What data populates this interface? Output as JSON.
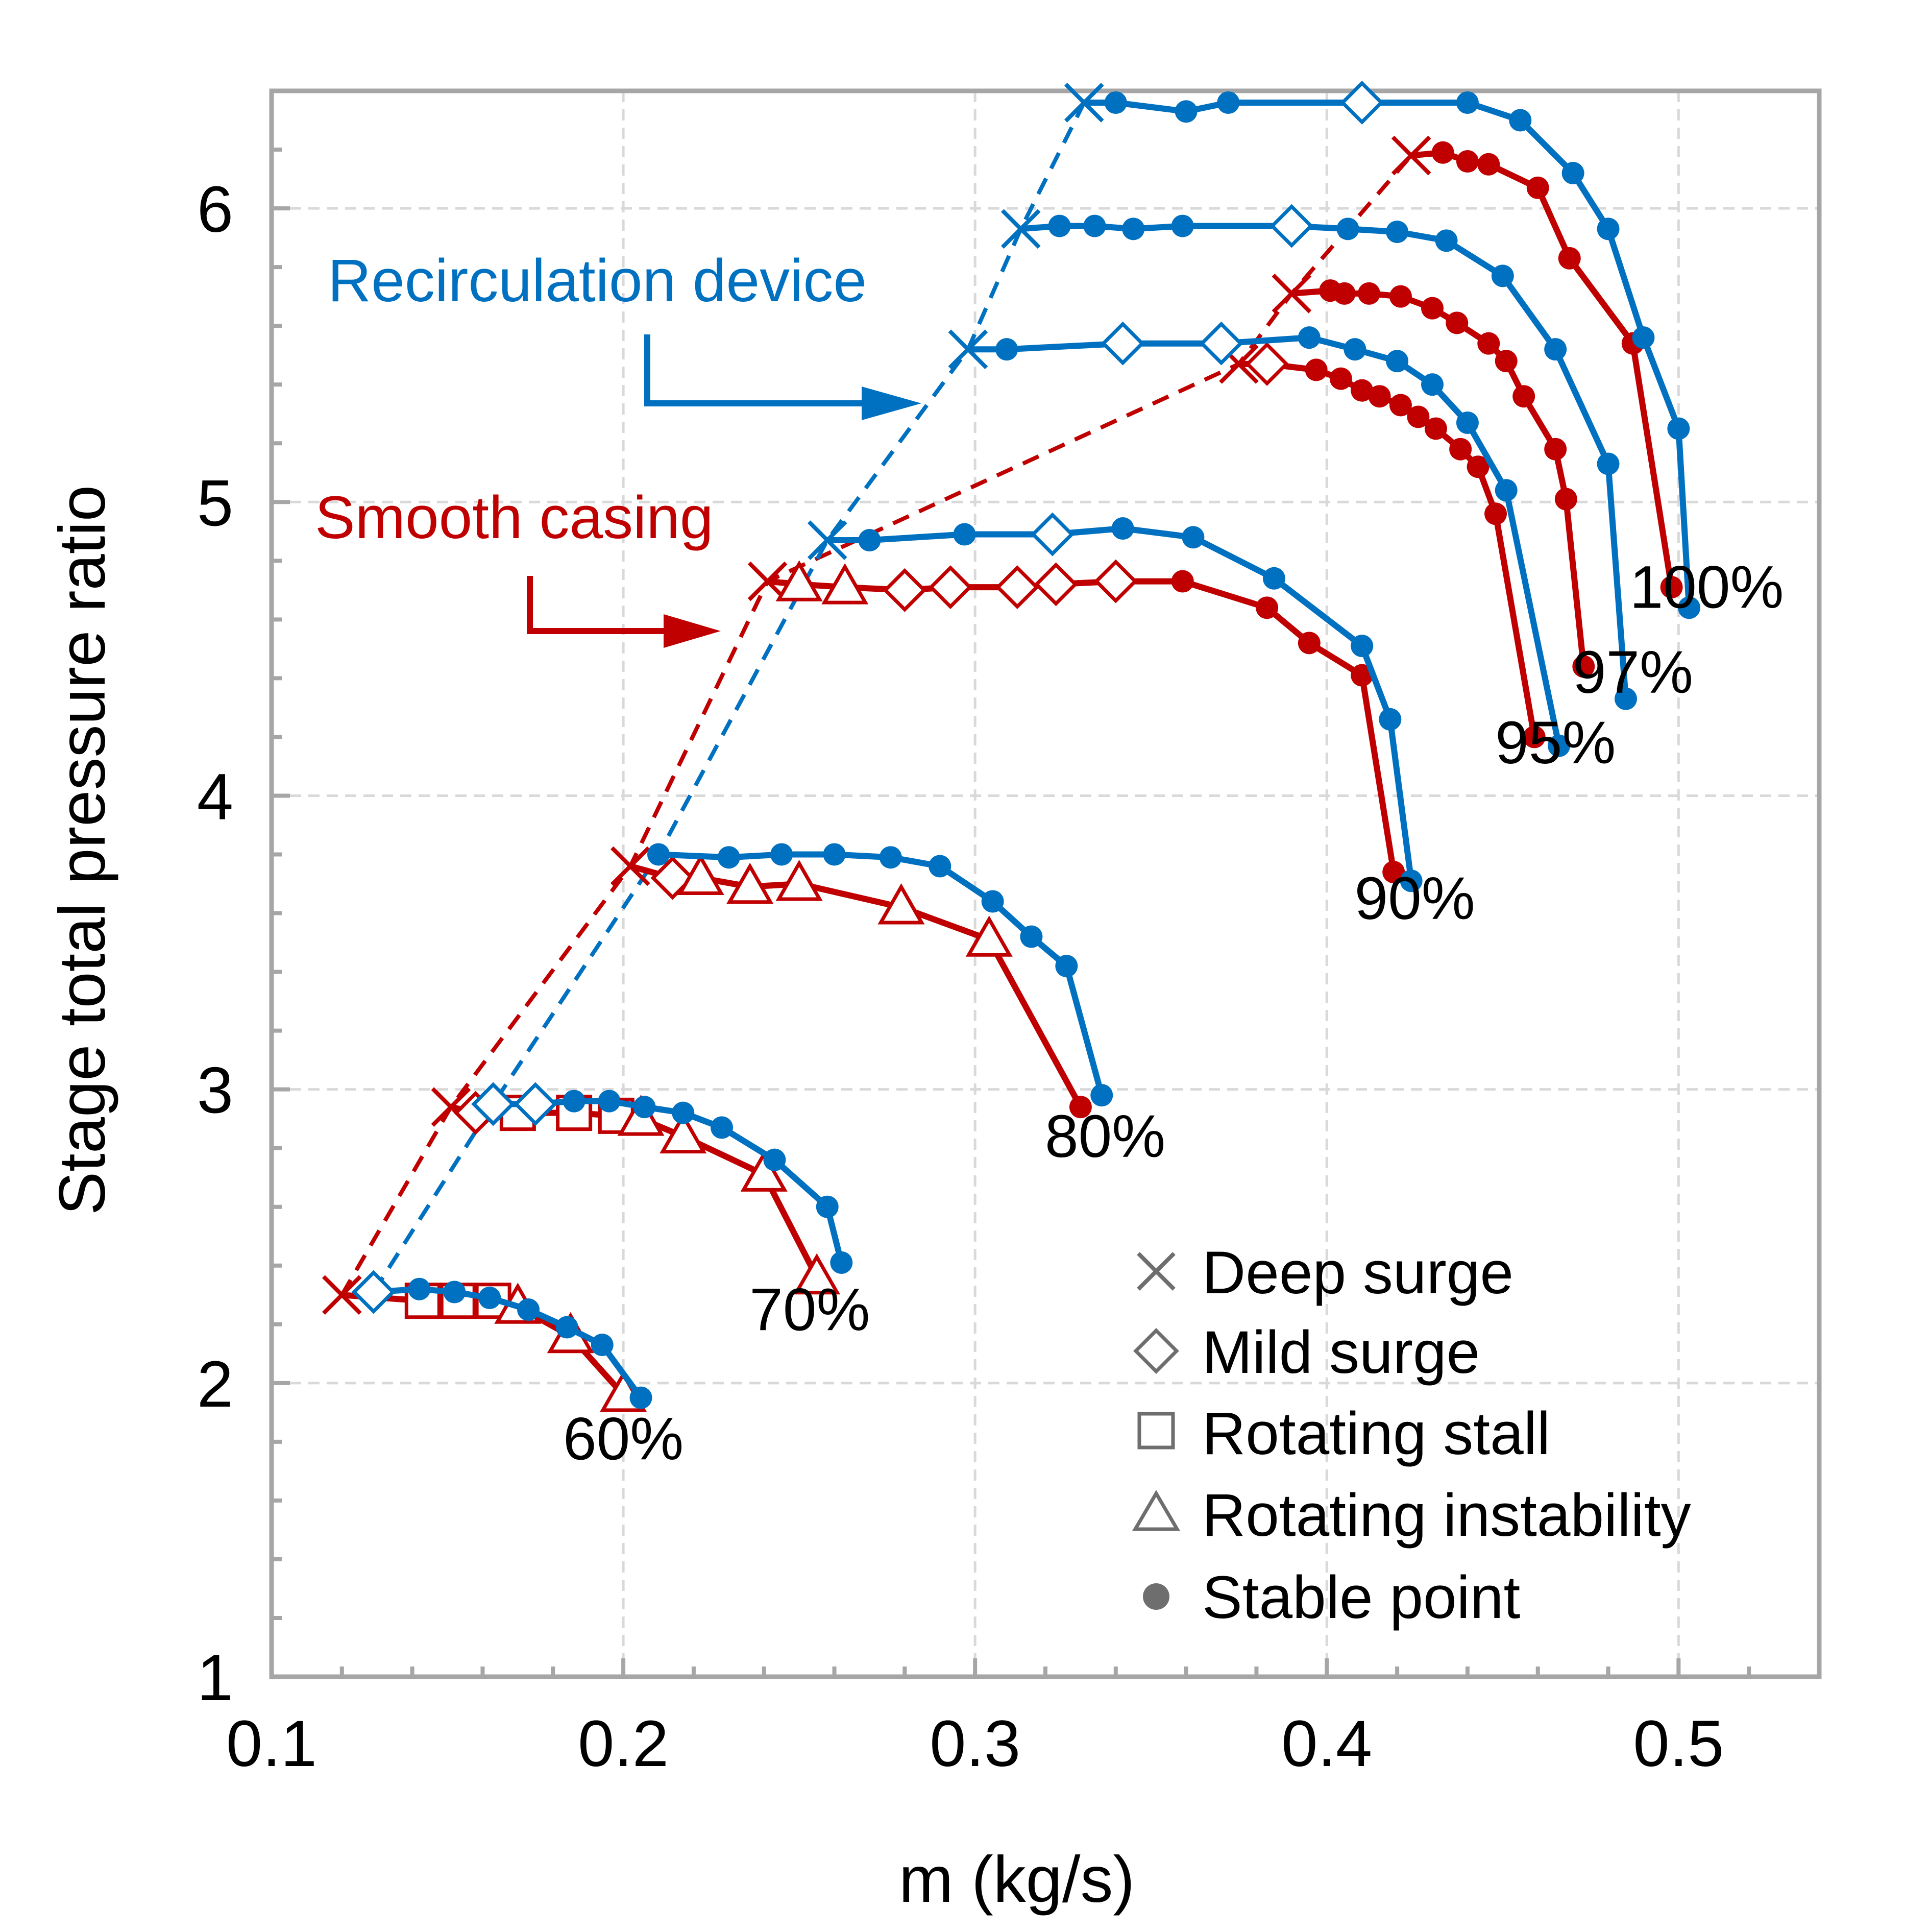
{
  "chart_data": {
    "type": "line",
    "title": "",
    "xlabel": "m (kg/s)",
    "ylabel": "Stage total pressure ratio",
    "xlim": [
      0.1,
      0.54
    ],
    "ylim": [
      1,
      6.4
    ],
    "x_ticks": [
      0.1,
      0.2,
      0.3,
      0.4,
      0.5
    ],
    "x_tick_labels": [
      "0.1",
      "0.2",
      "0.3",
      "0.4",
      "0.5"
    ],
    "y_ticks": [
      1,
      2,
      3,
      4,
      5,
      6
    ],
    "y_tick_labels": [
      "1",
      "2",
      "3",
      "4",
      "5",
      "6"
    ],
    "grid": true,
    "colors": {
      "smooth": "#c00000",
      "recirc": "#0070c0",
      "legend": "#6e6e6e",
      "axis": "#a6a6a6",
      "grid": "#d9d9d9"
    },
    "series_labels": {
      "recirc": "Recirculation device",
      "smooth": "Smooth casing"
    },
    "speed_labels": [
      {
        "text": "60%",
        "x": 0.2,
        "y": 1.74
      },
      {
        "text": "70%",
        "x": 0.253,
        "y": 2.18
      },
      {
        "text": "80%",
        "x": 0.337,
        "y": 2.77
      },
      {
        "text": "90%",
        "x": 0.425,
        "y": 3.58
      },
      {
        "text": "95%",
        "x": 0.465,
        "y": 4.11
      },
      {
        "text": "97%",
        "x": 0.487,
        "y": 4.35
      },
      {
        "text": "100%",
        "x": 0.508,
        "y": 4.64
      }
    ],
    "legend": {
      "placement": "bottom-right",
      "entries": [
        {
          "marker": "x",
          "label": "Deep surge"
        },
        {
          "marker": "diamond",
          "label": "Mild surge"
        },
        {
          "marker": "square",
          "label": "Rotating stall"
        },
        {
          "marker": "triangle",
          "label": "Rotating instability"
        },
        {
          "marker": "dot",
          "label": "Stable point"
        }
      ]
    },
    "series": [
      {
        "group": "smooth",
        "speed": "60%",
        "points": [
          [
            0.12,
            2.3,
            "x"
          ],
          [
            0.143,
            2.28,
            "square"
          ],
          [
            0.153,
            2.28,
            "square"
          ],
          [
            0.163,
            2.28,
            "square"
          ],
          [
            0.17,
            2.26,
            "triangle"
          ],
          [
            0.185,
            2.16,
            "triangle"
          ],
          [
            0.2,
            1.96,
            "triangle"
          ]
        ]
      },
      {
        "group": "recirc",
        "speed": "60%",
        "points": [
          [
            0.129,
            2.31,
            "diamond"
          ],
          [
            0.142,
            2.32,
            "dot"
          ],
          [
            0.152,
            2.31,
            "dot"
          ],
          [
            0.162,
            2.29,
            "dot"
          ],
          [
            0.173,
            2.25,
            "dot"
          ],
          [
            0.184,
            2.19,
            "dot"
          ],
          [
            0.194,
            2.13,
            "dot"
          ],
          [
            0.205,
            1.95,
            "dot"
          ]
        ]
      },
      {
        "group": "smooth",
        "speed": "70%",
        "points": [
          [
            0.151,
            2.94,
            "x"
          ],
          [
            0.158,
            2.92,
            "diamond"
          ],
          [
            0.17,
            2.92,
            "square"
          ],
          [
            0.186,
            2.92,
            "square"
          ],
          [
            0.198,
            2.91,
            "square"
          ],
          [
            0.205,
            2.9,
            "triangle"
          ],
          [
            0.217,
            2.84,
            "triangle"
          ],
          [
            0.24,
            2.71,
            "triangle"
          ],
          [
            0.255,
            2.36,
            "triangle"
          ]
        ]
      },
      {
        "group": "recirc",
        "speed": "70%",
        "points": [
          [
            0.163,
            2.95,
            "diamond"
          ],
          [
            0.175,
            2.95,
            "diamond"
          ],
          [
            0.186,
            2.96,
            "dot"
          ],
          [
            0.196,
            2.96,
            "dot"
          ],
          [
            0.206,
            2.94,
            "dot"
          ],
          [
            0.217,
            2.92,
            "dot"
          ],
          [
            0.228,
            2.87,
            "dot"
          ],
          [
            0.243,
            2.76,
            "dot"
          ],
          [
            0.258,
            2.6,
            "dot"
          ],
          [
            0.262,
            2.41,
            "dot"
          ]
        ]
      },
      {
        "group": "smooth",
        "speed": "80%",
        "points": [
          [
            0.202,
            3.76,
            "x"
          ],
          [
            0.214,
            3.72,
            "diamond"
          ],
          [
            0.222,
            3.72,
            "triangle"
          ],
          [
            0.236,
            3.69,
            "triangle"
          ],
          [
            0.25,
            3.7,
            "triangle"
          ],
          [
            0.279,
            3.62,
            "triangle"
          ],
          [
            0.304,
            3.51,
            "triangle"
          ],
          [
            0.33,
            2.94,
            "dot"
          ]
        ]
      },
      {
        "group": "recirc",
        "speed": "80%",
        "points": [
          [
            0.21,
            3.8,
            "dot"
          ],
          [
            0.23,
            3.79,
            "dot"
          ],
          [
            0.245,
            3.8,
            "dot"
          ],
          [
            0.26,
            3.8,
            "dot"
          ],
          [
            0.276,
            3.79,
            "dot"
          ],
          [
            0.29,
            3.76,
            "dot"
          ],
          [
            0.305,
            3.64,
            "dot"
          ],
          [
            0.316,
            3.52,
            "dot"
          ],
          [
            0.326,
            3.42,
            "dot"
          ],
          [
            0.336,
            2.98,
            "dot"
          ]
        ]
      },
      {
        "group": "smooth",
        "speed": "90%",
        "points": [
          [
            0.241,
            4.73,
            "x"
          ],
          [
            0.25,
            4.72,
            "triangle"
          ],
          [
            0.263,
            4.71,
            "triangle"
          ],
          [
            0.28,
            4.7,
            "diamond"
          ],
          [
            0.293,
            4.71,
            "diamond"
          ],
          [
            0.312,
            4.71,
            "diamond"
          ],
          [
            0.323,
            4.72,
            "diamond"
          ],
          [
            0.34,
            4.73,
            "diamond"
          ],
          [
            0.359,
            4.73,
            "dot"
          ],
          [
            0.383,
            4.64,
            "dot"
          ],
          [
            0.395,
            4.52,
            "dot"
          ],
          [
            0.41,
            4.41,
            "dot"
          ],
          [
            0.419,
            3.74,
            "dot"
          ]
        ]
      },
      {
        "group": "recirc",
        "speed": "90%",
        "points": [
          [
            0.258,
            4.87,
            "x"
          ],
          [
            0.27,
            4.87,
            "dot"
          ],
          [
            0.297,
            4.89,
            "dot"
          ],
          [
            0.322,
            4.89,
            "diamond"
          ],
          [
            0.342,
            4.91,
            "dot"
          ],
          [
            0.362,
            4.88,
            "dot"
          ],
          [
            0.385,
            4.74,
            "dot"
          ],
          [
            0.41,
            4.51,
            "dot"
          ],
          [
            0.418,
            4.26,
            "dot"
          ],
          [
            0.424,
            3.71,
            "dot"
          ]
        ]
      },
      {
        "group": "smooth",
        "speed": "95%",
        "points": [
          [
            0.375,
            5.47,
            "x"
          ],
          [
            0.383,
            5.47,
            "diamond"
          ],
          [
            0.397,
            5.45,
            "dot"
          ],
          [
            0.404,
            5.42,
            "dot"
          ],
          [
            0.41,
            5.38,
            "dot"
          ],
          [
            0.415,
            5.36,
            "dot"
          ],
          [
            0.421,
            5.33,
            "dot"
          ],
          [
            0.426,
            5.29,
            "dot"
          ],
          [
            0.431,
            5.25,
            "dot"
          ],
          [
            0.438,
            5.18,
            "dot"
          ],
          [
            0.443,
            5.12,
            "dot"
          ],
          [
            0.448,
            4.96,
            "dot"
          ],
          [
            0.459,
            4.2,
            "dot"
          ]
        ]
      },
      {
        "group": "recirc",
        "speed": "95%",
        "points": [
          [
            0.298,
            5.52,
            "x"
          ],
          [
            0.309,
            5.52,
            "dot"
          ],
          [
            0.342,
            5.54,
            "diamond"
          ],
          [
            0.37,
            5.54,
            "diamond"
          ],
          [
            0.395,
            5.56,
            "dot"
          ],
          [
            0.408,
            5.52,
            "dot"
          ],
          [
            0.42,
            5.48,
            "dot"
          ],
          [
            0.43,
            5.4,
            "dot"
          ],
          [
            0.44,
            5.27,
            "dot"
          ],
          [
            0.451,
            5.04,
            "dot"
          ],
          [
            0.466,
            4.17,
            "dot"
          ]
        ]
      },
      {
        "group": "smooth",
        "speed": "97%",
        "points": [
          [
            0.39,
            5.71,
            "x"
          ],
          [
            0.401,
            5.72,
            "dot"
          ],
          [
            0.405,
            5.71,
            "dot"
          ],
          [
            0.412,
            5.71,
            "dot"
          ],
          [
            0.421,
            5.7,
            "dot"
          ],
          [
            0.43,
            5.66,
            "dot"
          ],
          [
            0.437,
            5.61,
            "dot"
          ],
          [
            0.446,
            5.54,
            "dot"
          ],
          [
            0.451,
            5.48,
            "dot"
          ],
          [
            0.456,
            5.36,
            "dot"
          ],
          [
            0.465,
            5.18,
            "dot"
          ],
          [
            0.468,
            5.01,
            "dot"
          ],
          [
            0.473,
            4.44,
            "dot"
          ]
        ]
      },
      {
        "group": "recirc",
        "speed": "97%",
        "points": [
          [
            0.313,
            5.93,
            "x"
          ],
          [
            0.324,
            5.94,
            "dot"
          ],
          [
            0.334,
            5.94,
            "dot"
          ],
          [
            0.345,
            5.93,
            "dot"
          ],
          [
            0.359,
            5.94,
            "dot"
          ],
          [
            0.39,
            5.94,
            "diamond"
          ],
          [
            0.406,
            5.93,
            "dot"
          ],
          [
            0.42,
            5.92,
            "dot"
          ],
          [
            0.434,
            5.89,
            "dot"
          ],
          [
            0.45,
            5.77,
            "dot"
          ],
          [
            0.465,
            5.52,
            "dot"
          ],
          [
            0.48,
            5.13,
            "dot"
          ],
          [
            0.485,
            4.33,
            "dot"
          ]
        ]
      },
      {
        "group": "smooth",
        "speed": "100%",
        "points": [
          [
            0.424,
            6.18,
            "x"
          ],
          [
            0.433,
            6.19,
            "dot"
          ],
          [
            0.44,
            6.16,
            "dot"
          ],
          [
            0.446,
            6.15,
            "dot"
          ],
          [
            0.46,
            6.07,
            "dot"
          ],
          [
            0.469,
            5.83,
            "dot"
          ],
          [
            0.487,
            5.54,
            "dot"
          ],
          [
            0.498,
            4.71,
            "dot"
          ]
        ]
      },
      {
        "group": "recirc",
        "speed": "100%",
        "points": [
          [
            0.331,
            6.36,
            "x"
          ],
          [
            0.34,
            6.36,
            "dot"
          ],
          [
            0.36,
            6.33,
            "dot"
          ],
          [
            0.372,
            6.36,
            "dot"
          ],
          [
            0.41,
            6.36,
            "diamond"
          ],
          [
            0.44,
            6.36,
            "dot"
          ],
          [
            0.455,
            6.3,
            "dot"
          ],
          [
            0.47,
            6.12,
            "dot"
          ],
          [
            0.48,
            5.93,
            "dot"
          ],
          [
            0.49,
            5.56,
            "dot"
          ],
          [
            0.5,
            5.25,
            "dot"
          ],
          [
            0.503,
            4.64,
            "dot"
          ]
        ]
      }
    ],
    "surge_lines": [
      {
        "group": "smooth",
        "points": [
          [
            0.12,
            2.3
          ],
          [
            0.151,
            2.94
          ],
          [
            0.202,
            3.76
          ],
          [
            0.241,
            4.73
          ],
          [
            0.375,
            5.47
          ],
          [
            0.39,
            5.71
          ],
          [
            0.424,
            6.18
          ]
        ]
      },
      {
        "group": "recirc",
        "points": [
          [
            0.129,
            2.31
          ],
          [
            0.163,
            2.95
          ],
          [
            0.21,
            3.8
          ],
          [
            0.258,
            4.87
          ],
          [
            0.298,
            5.52
          ],
          [
            0.313,
            5.93
          ],
          [
            0.331,
            6.36
          ]
        ]
      }
    ]
  }
}
